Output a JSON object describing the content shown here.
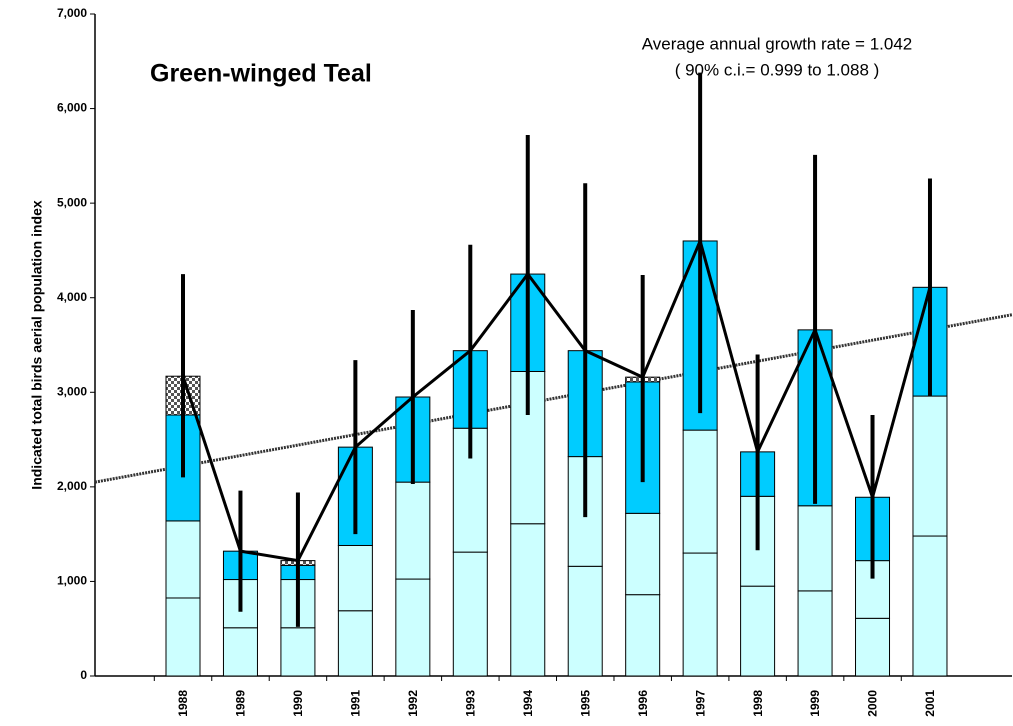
{
  "chart_data": {
    "type": "bar",
    "stacked": true,
    "title": "Green-winged Teal",
    "y_label": "Indicated total birds aerial population index",
    "annotations": [
      "Average annual growth rate = 1.042",
      "( 90% c.i.= 0.999 to 1.088 )"
    ],
    "categories": [
      "1988",
      "1989",
      "1990",
      "1991",
      "1992",
      "1993",
      "1994",
      "1995",
      "1996",
      "1997",
      "1998",
      "1999",
      "2000",
      "2001"
    ],
    "series": [
      {
        "color": "#ccffff",
        "values": [
          825,
          510,
          510,
          690,
          1025,
          1310,
          1610,
          1160,
          860,
          1300,
          950,
          900,
          610,
          1480
        ]
      },
      {
        "color": "#ccffff",
        "values": [
          815,
          510,
          510,
          690,
          1025,
          1310,
          1610,
          1160,
          860,
          1300,
          950,
          900,
          610,
          1480
        ]
      },
      {
        "color": "#00ccff",
        "values": [
          1120,
          300,
          150,
          1040,
          900,
          820,
          1030,
          1120,
          1390,
          2000,
          470,
          1860,
          670,
          1150
        ]
      },
      {
        "color": "#808080",
        "pattern": "checkered",
        "values": [
          410,
          0,
          50,
          0,
          0,
          0,
          0,
          0,
          50,
          0,
          0,
          0,
          0,
          0
        ]
      }
    ],
    "line": {
      "color": "#000000",
      "values": [
        3170,
        1320,
        1220,
        2420,
        2950,
        3440,
        4250,
        3440,
        3160,
        4600,
        2370,
        3660,
        1890,
        4110
      ]
    },
    "error_bars": {
      "color": "#000000",
      "low": [
        2100,
        680,
        520,
        1500,
        2030,
        2300,
        2760,
        1680,
        2050,
        2780,
        1330,
        1820,
        1030,
        2960
      ],
      "high": [
        4250,
        1960,
        1940,
        3340,
        3870,
        4560,
        5720,
        5210,
        4240,
        6380,
        3400,
        5510,
        2760,
        5260
      ]
    },
    "trend": {
      "color": "#333333",
      "values": [
        2050,
        3820
      ]
    },
    "ylim": [
      0,
      7000
    ],
    "yticks": [
      0,
      {
        "value": 1000,
        "label": "1,000"
      },
      {
        "value": 2000,
        "label": "2,000"
      },
      {
        "value": 3000,
        "label": "3,000"
      },
      {
        "value": 4000,
        "label": "4,000"
      },
      {
        "value": 5000,
        "label": "5,000"
      },
      {
        "value": 6000,
        "label": "6,000"
      },
      {
        "value": 7000,
        "label": "7,000"
      }
    ]
  }
}
